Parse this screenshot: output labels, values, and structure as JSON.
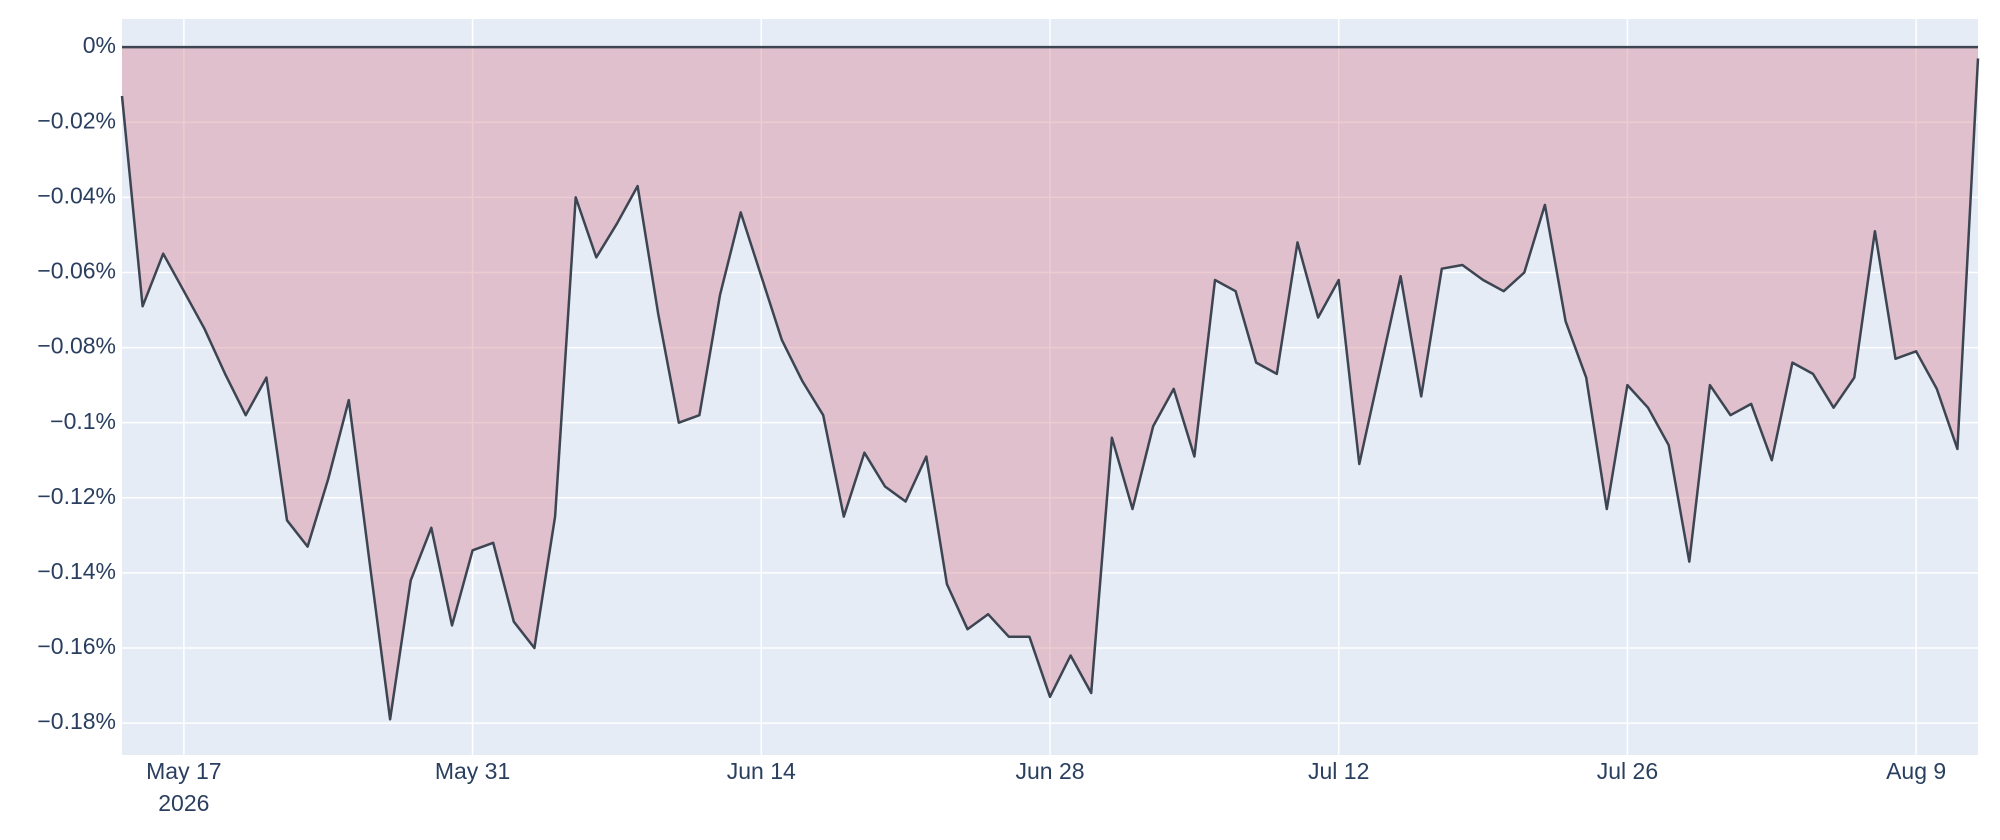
{
  "chart_data": {
    "type": "area",
    "x": [
      "2026-05-14",
      "2026-05-15",
      "2026-05-16",
      "2026-05-17",
      "2026-05-18",
      "2026-05-19",
      "2026-05-20",
      "2026-05-21",
      "2026-05-22",
      "2026-05-23",
      "2026-05-24",
      "2026-05-25",
      "2026-05-26",
      "2026-05-27",
      "2026-05-28",
      "2026-05-29",
      "2026-05-30",
      "2026-05-31",
      "2026-06-01",
      "2026-06-02",
      "2026-06-03",
      "2026-06-04",
      "2026-06-05",
      "2026-06-06",
      "2026-06-07",
      "2026-06-08",
      "2026-06-09",
      "2026-06-10",
      "2026-06-11",
      "2026-06-12",
      "2026-06-13",
      "2026-06-14",
      "2026-06-15",
      "2026-06-16",
      "2026-06-17",
      "2026-06-18",
      "2026-06-19",
      "2026-06-20",
      "2026-06-21",
      "2026-06-22",
      "2026-06-23",
      "2026-06-24",
      "2026-06-25",
      "2026-06-26",
      "2026-06-27",
      "2026-06-28",
      "2026-06-29",
      "2026-06-30",
      "2026-07-01",
      "2026-07-02",
      "2026-07-03",
      "2026-07-04",
      "2026-07-05",
      "2026-07-06",
      "2026-07-07",
      "2026-07-08",
      "2026-07-09",
      "2026-07-10",
      "2026-07-11",
      "2026-07-12",
      "2026-07-13",
      "2026-07-14",
      "2026-07-15",
      "2026-07-16",
      "2026-07-17",
      "2026-07-18",
      "2026-07-19",
      "2026-07-20",
      "2026-07-21",
      "2026-07-22",
      "2026-07-23",
      "2026-07-24",
      "2026-07-25",
      "2026-07-26",
      "2026-07-27",
      "2026-07-28",
      "2026-07-29",
      "2026-07-30",
      "2026-07-31",
      "2026-08-01",
      "2026-08-02",
      "2026-08-03",
      "2026-08-04",
      "2026-08-05",
      "2026-08-06",
      "2026-08-07",
      "2026-08-08",
      "2026-08-09",
      "2026-08-10",
      "2026-08-11",
      "2026-08-12"
    ],
    "values": [
      -0.013,
      -0.069,
      -0.055,
      -0.065,
      -0.075,
      -0.087,
      -0.098,
      -0.088,
      -0.126,
      -0.133,
      -0.115,
      -0.094,
      -0.137,
      -0.179,
      -0.142,
      -0.128,
      -0.154,
      -0.134,
      -0.132,
      -0.153,
      -0.16,
      -0.125,
      -0.04,
      -0.056,
      -0.047,
      -0.037,
      -0.071,
      -0.1,
      -0.098,
      -0.066,
      -0.044,
      -0.061,
      -0.078,
      -0.089,
      -0.098,
      -0.125,
      -0.108,
      -0.117,
      -0.121,
      -0.109,
      -0.143,
      -0.155,
      -0.151,
      -0.157,
      -0.157,
      -0.173,
      -0.162,
      -0.172,
      -0.104,
      -0.123,
      -0.101,
      -0.091,
      -0.109,
      -0.062,
      -0.065,
      -0.084,
      -0.087,
      -0.052,
      -0.072,
      -0.062,
      -0.111,
      -0.086,
      -0.061,
      -0.093,
      -0.059,
      -0.058,
      -0.062,
      -0.065,
      -0.06,
      -0.042,
      -0.073,
      -0.088,
      -0.123,
      -0.09,
      -0.096,
      -0.106,
      -0.137,
      -0.09,
      -0.098,
      -0.095,
      -0.11,
      -0.084,
      -0.087,
      -0.096,
      -0.088,
      -0.049,
      -0.083,
      -0.081,
      -0.091,
      -0.107,
      -0.003
    ],
    "color": "#3d4452",
    "fill_color": "rgba(214,140,152,0.45)",
    "xlim": [
      "2026-05-14",
      "2026-08-12"
    ],
    "xticks": [
      {
        "value": "2026-05-17",
        "label": "May 17"
      },
      {
        "value": "2026-05-31",
        "label": "May 31"
      },
      {
        "value": "2026-06-14",
        "label": "Jun 14"
      },
      {
        "value": "2026-06-28",
        "label": "Jun 28"
      },
      {
        "value": "2026-07-12",
        "label": "Jul 12"
      },
      {
        "value": "2026-07-26",
        "label": "Jul 26"
      },
      {
        "value": "2026-08-09",
        "label": "Aug 9"
      }
    ],
    "x_year_label": "2026",
    "ylim": [
      -0.1885,
      0.0075
    ],
    "yticks": [
      {
        "value": 0,
        "label": "0%"
      },
      {
        "value": -0.02,
        "label": "−0.02%"
      },
      {
        "value": -0.04,
        "label": "−0.04%"
      },
      {
        "value": -0.06,
        "label": "−0.06%"
      },
      {
        "value": -0.08,
        "label": "−0.08%"
      },
      {
        "value": -0.1,
        "label": "−0.1%"
      },
      {
        "value": -0.12,
        "label": "−0.12%"
      },
      {
        "value": -0.14,
        "label": "−0.14%"
      },
      {
        "value": -0.16,
        "label": "−0.16%"
      },
      {
        "value": -0.18,
        "label": "−0.18%"
      }
    ],
    "grid": true
  }
}
